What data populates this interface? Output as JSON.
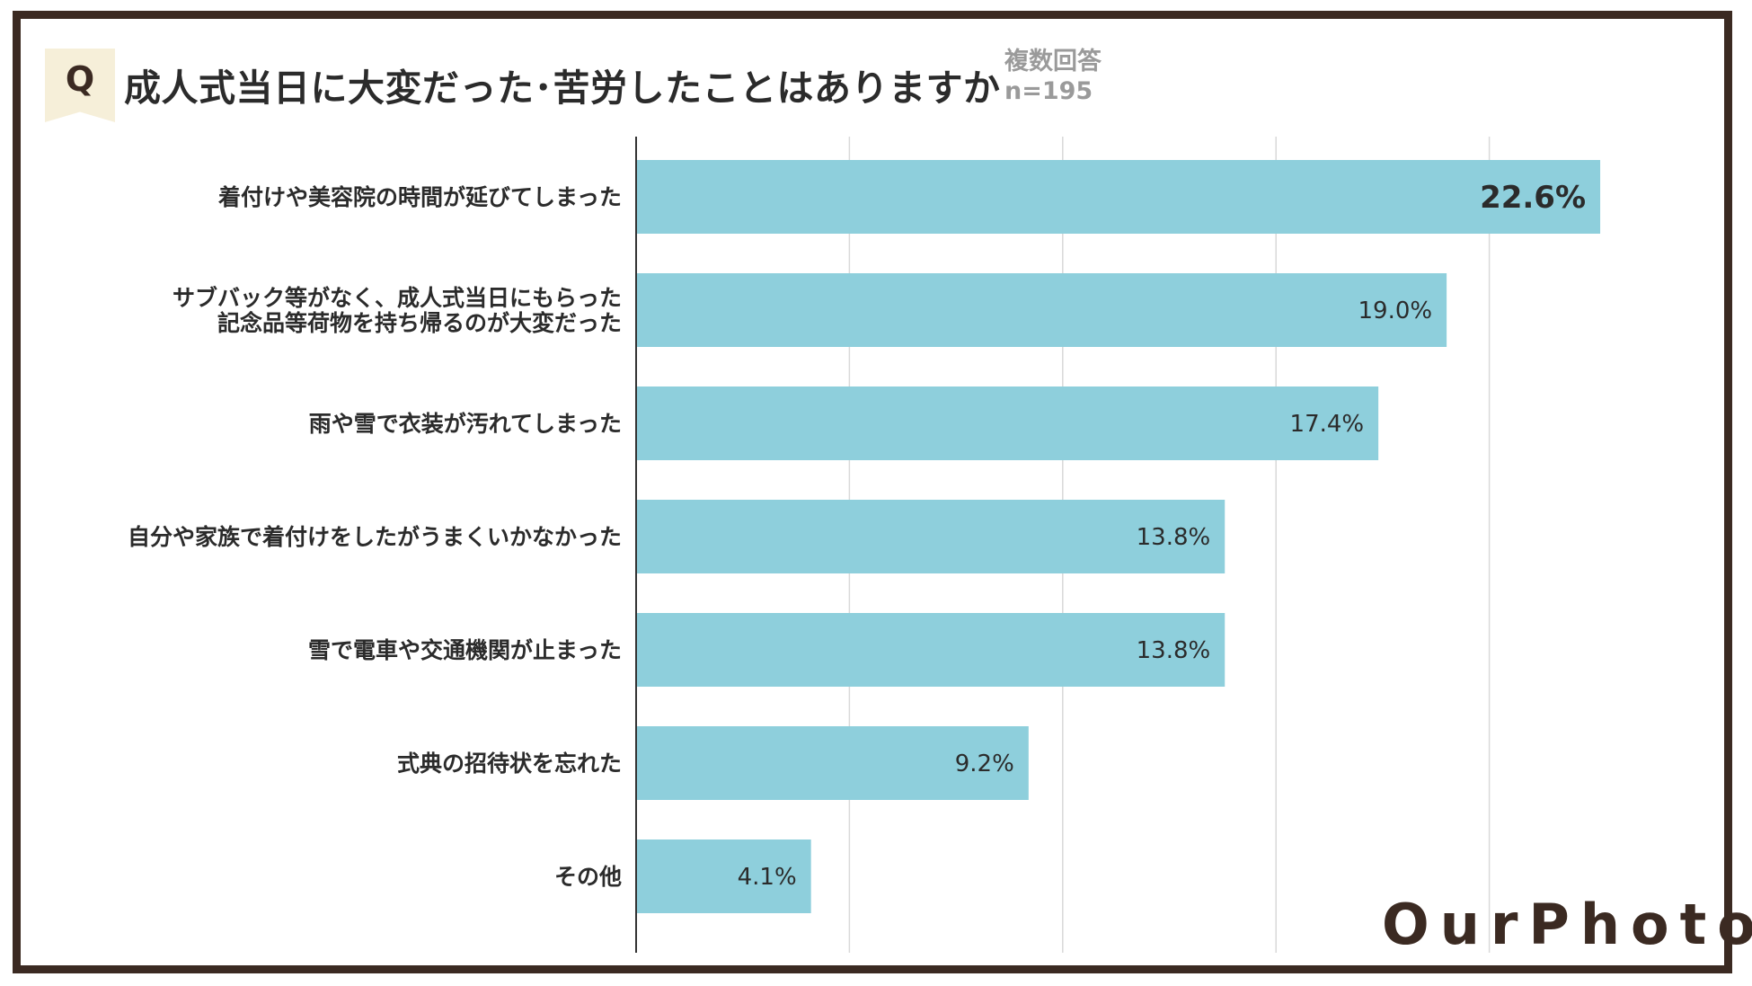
{
  "header": {
    "q_mark": "Q",
    "title": "成人式当日に大変だった･苦労したことはありますか",
    "answer_type": "複数回答",
    "sample_size": "n=195"
  },
  "brand": {
    "logo_text": "OurPhoto"
  },
  "colors": {
    "bar": "#8ecfdc",
    "frame": "#3b2a22",
    "badge": "#f6efd9",
    "grid": "#d9d9d9",
    "axis": "#333333"
  },
  "chart_data": {
    "type": "bar",
    "orientation": "horizontal",
    "title": "成人式当日に大変だった･苦労したことはありますか",
    "categories": [
      [
        "着付けや美容院の時間が延びてしまった"
      ],
      [
        "サブバック等がなく、成人式当日にもらった",
        "記念品等荷物を持ち帰るのが大変だった"
      ],
      [
        "雨や雪で衣装が汚れてしまった"
      ],
      [
        "自分や家族で着付けをしたがうまくいかなかった"
      ],
      [
        "雪で電車や交通機関が止まった"
      ],
      [
        "式典の招待状を忘れた"
      ],
      [
        "その他"
      ]
    ],
    "values": [
      22.6,
      19.0,
      17.4,
      13.8,
      13.8,
      9.2,
      4.1
    ],
    "value_labels": [
      "22.6%",
      "19.0%",
      "17.4%",
      "13.8%",
      "13.8%",
      "9.2%",
      "4.1%"
    ],
    "highlight_index": 0,
    "xlim": [
      0,
      25
    ],
    "gridlines": [
      0,
      5,
      10,
      15,
      20
    ],
    "grid": true,
    "legend": "none"
  }
}
